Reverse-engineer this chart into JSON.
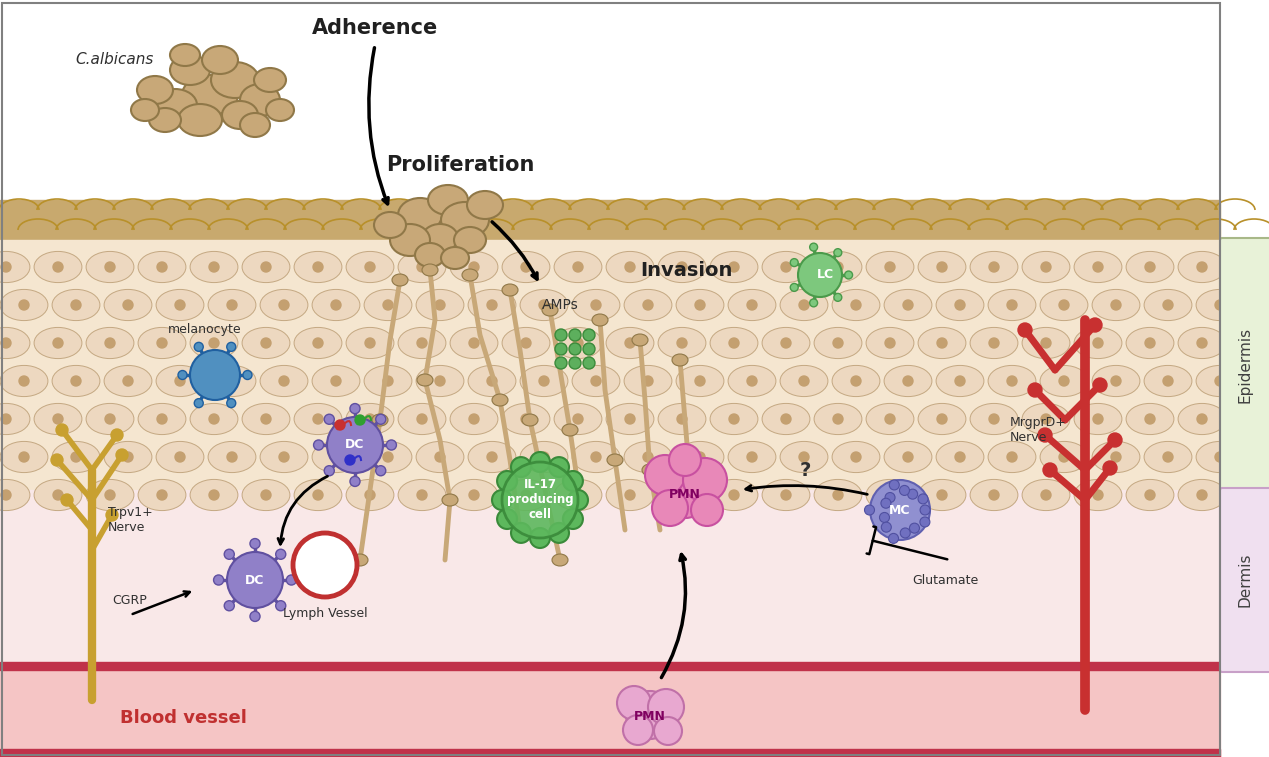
{
  "fig_width": 12.69,
  "fig_height": 7.57,
  "bg_color": "#FFFFFF",
  "epidermis_top_color": "#C8A96E",
  "epidermis_cell_color": "#F5E6D0",
  "dermis_color": "#F9E8E8",
  "blood_vessel_color": "#C0324A",
  "blood_vessel_bg": "#F5C5C5",
  "epidermis_label_bg": "#E8F0D8",
  "dermis_label_bg": "#F0E0F0",
  "labels": {
    "C_albicans": "C.albicans",
    "Adherence": "Adherence",
    "Proliferation": "Proliferation",
    "Invasion": "Invasion",
    "AMPs": "AMPs",
    "LC": "LC",
    "melanocyte": "melanocyte",
    "DC_upper": "DC",
    "DC_lower": "DC",
    "IL17": "IL-17\nproducing\ncell",
    "PMN_upper": "PMN",
    "PMN_lower": "PMN",
    "MC": "MC",
    "MrgprD": "MrgprD+\nNerve",
    "Trpv1": "Trpv1+\nNerve",
    "CGRP": "CGRP",
    "LymphVessel": "Lymph Vessel",
    "Glutamate": "Glutamate",
    "BloodVessel": "Blood vessel",
    "Epidermis": "Epidermis",
    "Dermis": "Dermis"
  }
}
